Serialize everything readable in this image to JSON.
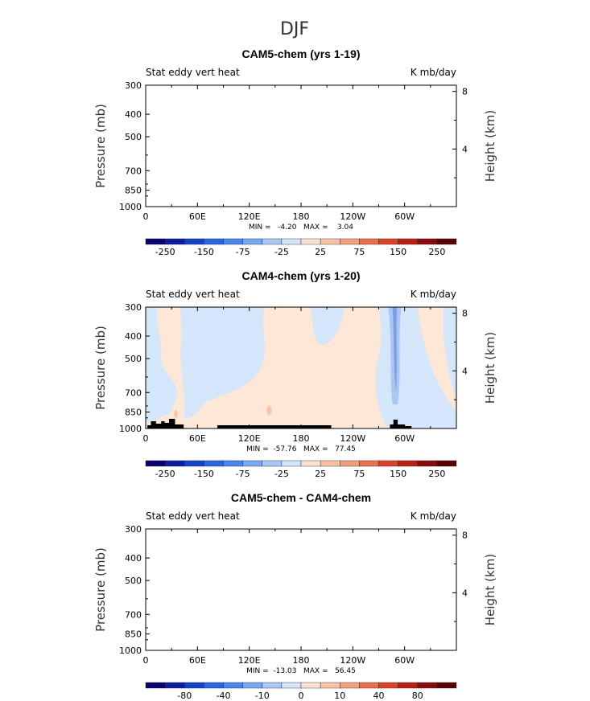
{
  "figure_title": "DJF",
  "chart_data": [
    {
      "type": "heatmap",
      "title": "CAM5-chem (yrs 1-19)",
      "left_label": "Stat eddy vert heat",
      "right_label": "K mb/day",
      "xlabel": "",
      "ylabel": "Pressure (mb)",
      "y2label": "Height (km)",
      "x_ticks": [
        "0",
        "60E",
        "120E",
        "180",
        "120W",
        "60W"
      ],
      "y_ticks": [
        "300",
        "400",
        "500",
        "700",
        "850",
        "1000"
      ],
      "y2_ticks": [
        "8",
        "4"
      ],
      "xlim": [
        0,
        360
      ],
      "ylim": [
        1000,
        300
      ],
      "y_scale": "log",
      "stats_text": "MIN =   -4.20   MAX =    3.04",
      "min": -4.2,
      "max": 3.04,
      "colorbar_labels": [
        "-250",
        "-150",
        "-75",
        "-25",
        "25",
        "75",
        "150",
        "250"
      ],
      "field": "empty"
    },
    {
      "type": "heatmap",
      "title": "CAM4-chem (yrs 1-20)",
      "left_label": "Stat eddy vert heat",
      "right_label": "K mb/day",
      "xlabel": "",
      "ylabel": "Pressure (mb)",
      "y2label": "Height (km)",
      "x_ticks": [
        "0",
        "60E",
        "120E",
        "180",
        "120W",
        "60W"
      ],
      "y_ticks": [
        "300",
        "400",
        "500",
        "700",
        "850",
        "1000"
      ],
      "y2_ticks": [
        "8",
        "4"
      ],
      "xlim": [
        0,
        360
      ],
      "ylim": [
        1000,
        300
      ],
      "y_scale": "log",
      "stats_text": "MIN =  -57.76   MAX =   77.45",
      "min": -57.76,
      "max": 77.45,
      "colorbar_labels": [
        "-250",
        "-150",
        "-75",
        "-25",
        "25",
        "75",
        "150",
        "250"
      ],
      "field": "contours"
    },
    {
      "type": "heatmap",
      "title": "CAM5-chem - CAM4-chem",
      "left_label": "Stat eddy vert heat",
      "right_label": "K mb/day",
      "xlabel": "",
      "ylabel": "Pressure (mb)",
      "y2label": "Height (km)",
      "x_ticks": [
        "0",
        "60E",
        "120E",
        "180",
        "120W",
        "60W"
      ],
      "y_ticks": [
        "300",
        "400",
        "500",
        "700",
        "850",
        "1000"
      ],
      "y2_ticks": [
        "8",
        "4"
      ],
      "xlim": [
        0,
        360
      ],
      "ylim": [
        1000,
        300
      ],
      "y_scale": "log",
      "stats_text": "MIN =  -13.03   MAX =   56.45",
      "min": -13.03,
      "max": 56.45,
      "colorbar_labels": [
        "-80",
        "-40",
        "-10",
        "0",
        "10",
        "40",
        "80"
      ],
      "field": "empty"
    }
  ],
  "colors": {
    "colorbar": [
      "#08006e",
      "#0c1ea0",
      "#1542c8",
      "#2a66e2",
      "#4a86ee",
      "#7aa7f2",
      "#a8c6f6",
      "#d3e3fa",
      "#fae0ce",
      "#f7c1a4",
      "#f29f7c",
      "#ea7050",
      "#db4228",
      "#bb2014",
      "#8a0c0a",
      "#5a0000"
    ],
    "pos_light": "#fde7d6",
    "pos_mid": "#f9c6ac",
    "neg_light": "#d5e6fb",
    "neg_mid": "#aac7f1",
    "neg_strong": "#7b9ee6",
    "topography": "#000000"
  }
}
